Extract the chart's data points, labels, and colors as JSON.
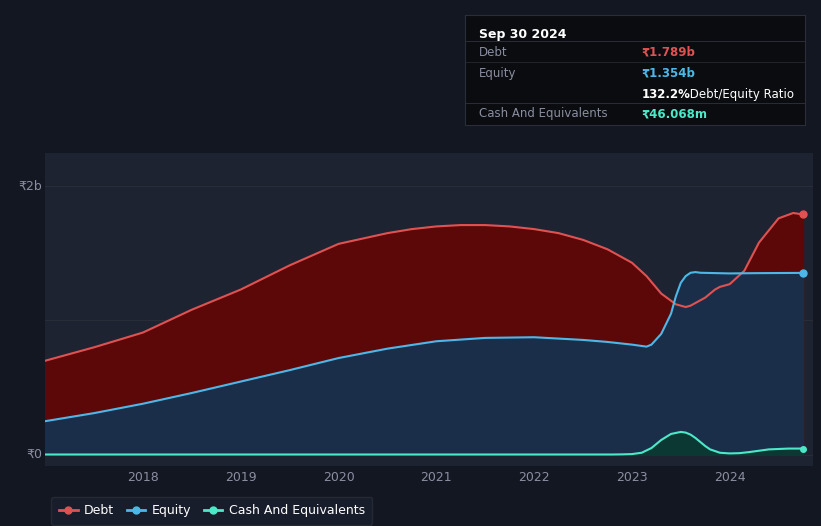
{
  "background_color": "#131722",
  "plot_bg_color": "#1e2332",
  "grid_color": "#2a2e39",
  "title_box": {
    "date": "Sep 30 2024",
    "debt_label": "Debt",
    "debt_value": "₹1.789b",
    "debt_color": "#e05252",
    "equity_label": "Equity",
    "equity_value": "₹1.354b",
    "equity_color": "#4db8e8",
    "ratio_bold": "132.2%",
    "ratio_rest": " Debt/Equity Ratio",
    "cash_label": "Cash And Equivalents",
    "cash_value": "₹46.068m",
    "cash_color": "#4de8c8"
  },
  "ylabel_2b": "₹2b",
  "ylabel_0": "₹0",
  "x_ticks": [
    2018,
    2019,
    2020,
    2021,
    2022,
    2023,
    2024
  ],
  "ylim": [
    -80000000.0,
    2250000000.0
  ],
  "xlim": [
    2017.0,
    2024.85
  ],
  "debt_color": "#e05252",
  "equity_color": "#4db8e8",
  "cash_color": "#4de8c8",
  "debt_fill_color": "#5c0808",
  "equity_fill_color": "#1a2e4a",
  "cash_fill_color": "#0a3a30",
  "legend": [
    {
      "label": "Debt",
      "color": "#e05252"
    },
    {
      "label": "Equity",
      "color": "#4db8e8"
    },
    {
      "label": "Cash And Equivalents",
      "color": "#4de8c8"
    }
  ],
  "debt_x": [
    2017.0,
    2017.5,
    2018.0,
    2018.5,
    2019.0,
    2019.5,
    2020.0,
    2020.25,
    2020.5,
    2020.75,
    2021.0,
    2021.25,
    2021.5,
    2021.75,
    2022.0,
    2022.25,
    2022.5,
    2022.75,
    2023.0,
    2023.15,
    2023.3,
    2023.45,
    2023.55,
    2023.6,
    2023.65,
    2023.7,
    2023.75,
    2023.8,
    2023.85,
    2023.9,
    2024.0,
    2024.15,
    2024.3,
    2024.5,
    2024.65,
    2024.75
  ],
  "debt_y": [
    700000000.0,
    800000000.0,
    910000000.0,
    1080000000.0,
    1230000000.0,
    1410000000.0,
    1570000000.0,
    1610000000.0,
    1650000000.0,
    1680000000.0,
    1700000000.0,
    1710000000.0,
    1710000000.0,
    1700000000.0,
    1680000000.0,
    1650000000.0,
    1600000000.0,
    1530000000.0,
    1430000000.0,
    1330000000.0,
    1200000000.0,
    1120000000.0,
    1100000000.0,
    1110000000.0,
    1130000000.0,
    1150000000.0,
    1170000000.0,
    1200000000.0,
    1230000000.0,
    1250000000.0,
    1270000000.0,
    1370000000.0,
    1580000000.0,
    1760000000.0,
    1800000000.0,
    1789000000.0
  ],
  "equity_x": [
    2017.0,
    2017.5,
    2018.0,
    2018.5,
    2019.0,
    2019.5,
    2020.0,
    2020.5,
    2021.0,
    2021.5,
    2022.0,
    2022.5,
    2022.75,
    2023.0,
    2023.1,
    2023.15,
    2023.2,
    2023.3,
    2023.4,
    2023.45,
    2023.5,
    2023.55,
    2023.6,
    2023.65,
    2023.7,
    2024.0,
    2024.25,
    2024.5,
    2024.75
  ],
  "equity_y": [
    250000000.0,
    310000000.0,
    380000000.0,
    460000000.0,
    545000000.0,
    630000000.0,
    720000000.0,
    790000000.0,
    845000000.0,
    870000000.0,
    875000000.0,
    855000000.0,
    840000000.0,
    820000000.0,
    810000000.0,
    805000000.0,
    820000000.0,
    900000000.0,
    1050000000.0,
    1180000000.0,
    1280000000.0,
    1330000000.0,
    1355000000.0,
    1360000000.0,
    1355000000.0,
    1350000000.0,
    1352000000.0,
    1353000000.0,
    1354000000.0
  ],
  "cash_x": [
    2017.0,
    2022.8,
    2022.9,
    2023.0,
    2023.1,
    2023.2,
    2023.3,
    2023.4,
    2023.5,
    2023.55,
    2023.6,
    2023.65,
    2023.7,
    2023.75,
    2023.8,
    2023.9,
    2024.0,
    2024.1,
    2024.2,
    2024.4,
    2024.6,
    2024.75
  ],
  "cash_y": [
    2000000.0,
    2000000.0,
    3000000.0,
    5000000.0,
    15000000.0,
    50000000.0,
    110000000.0,
    155000000.0,
    170000000.0,
    165000000.0,
    150000000.0,
    125000000.0,
    95000000.0,
    65000000.0,
    40000000.0,
    15000000.0,
    10000000.0,
    12000000.0,
    20000000.0,
    40000000.0,
    46000000.0,
    46068000.0
  ]
}
